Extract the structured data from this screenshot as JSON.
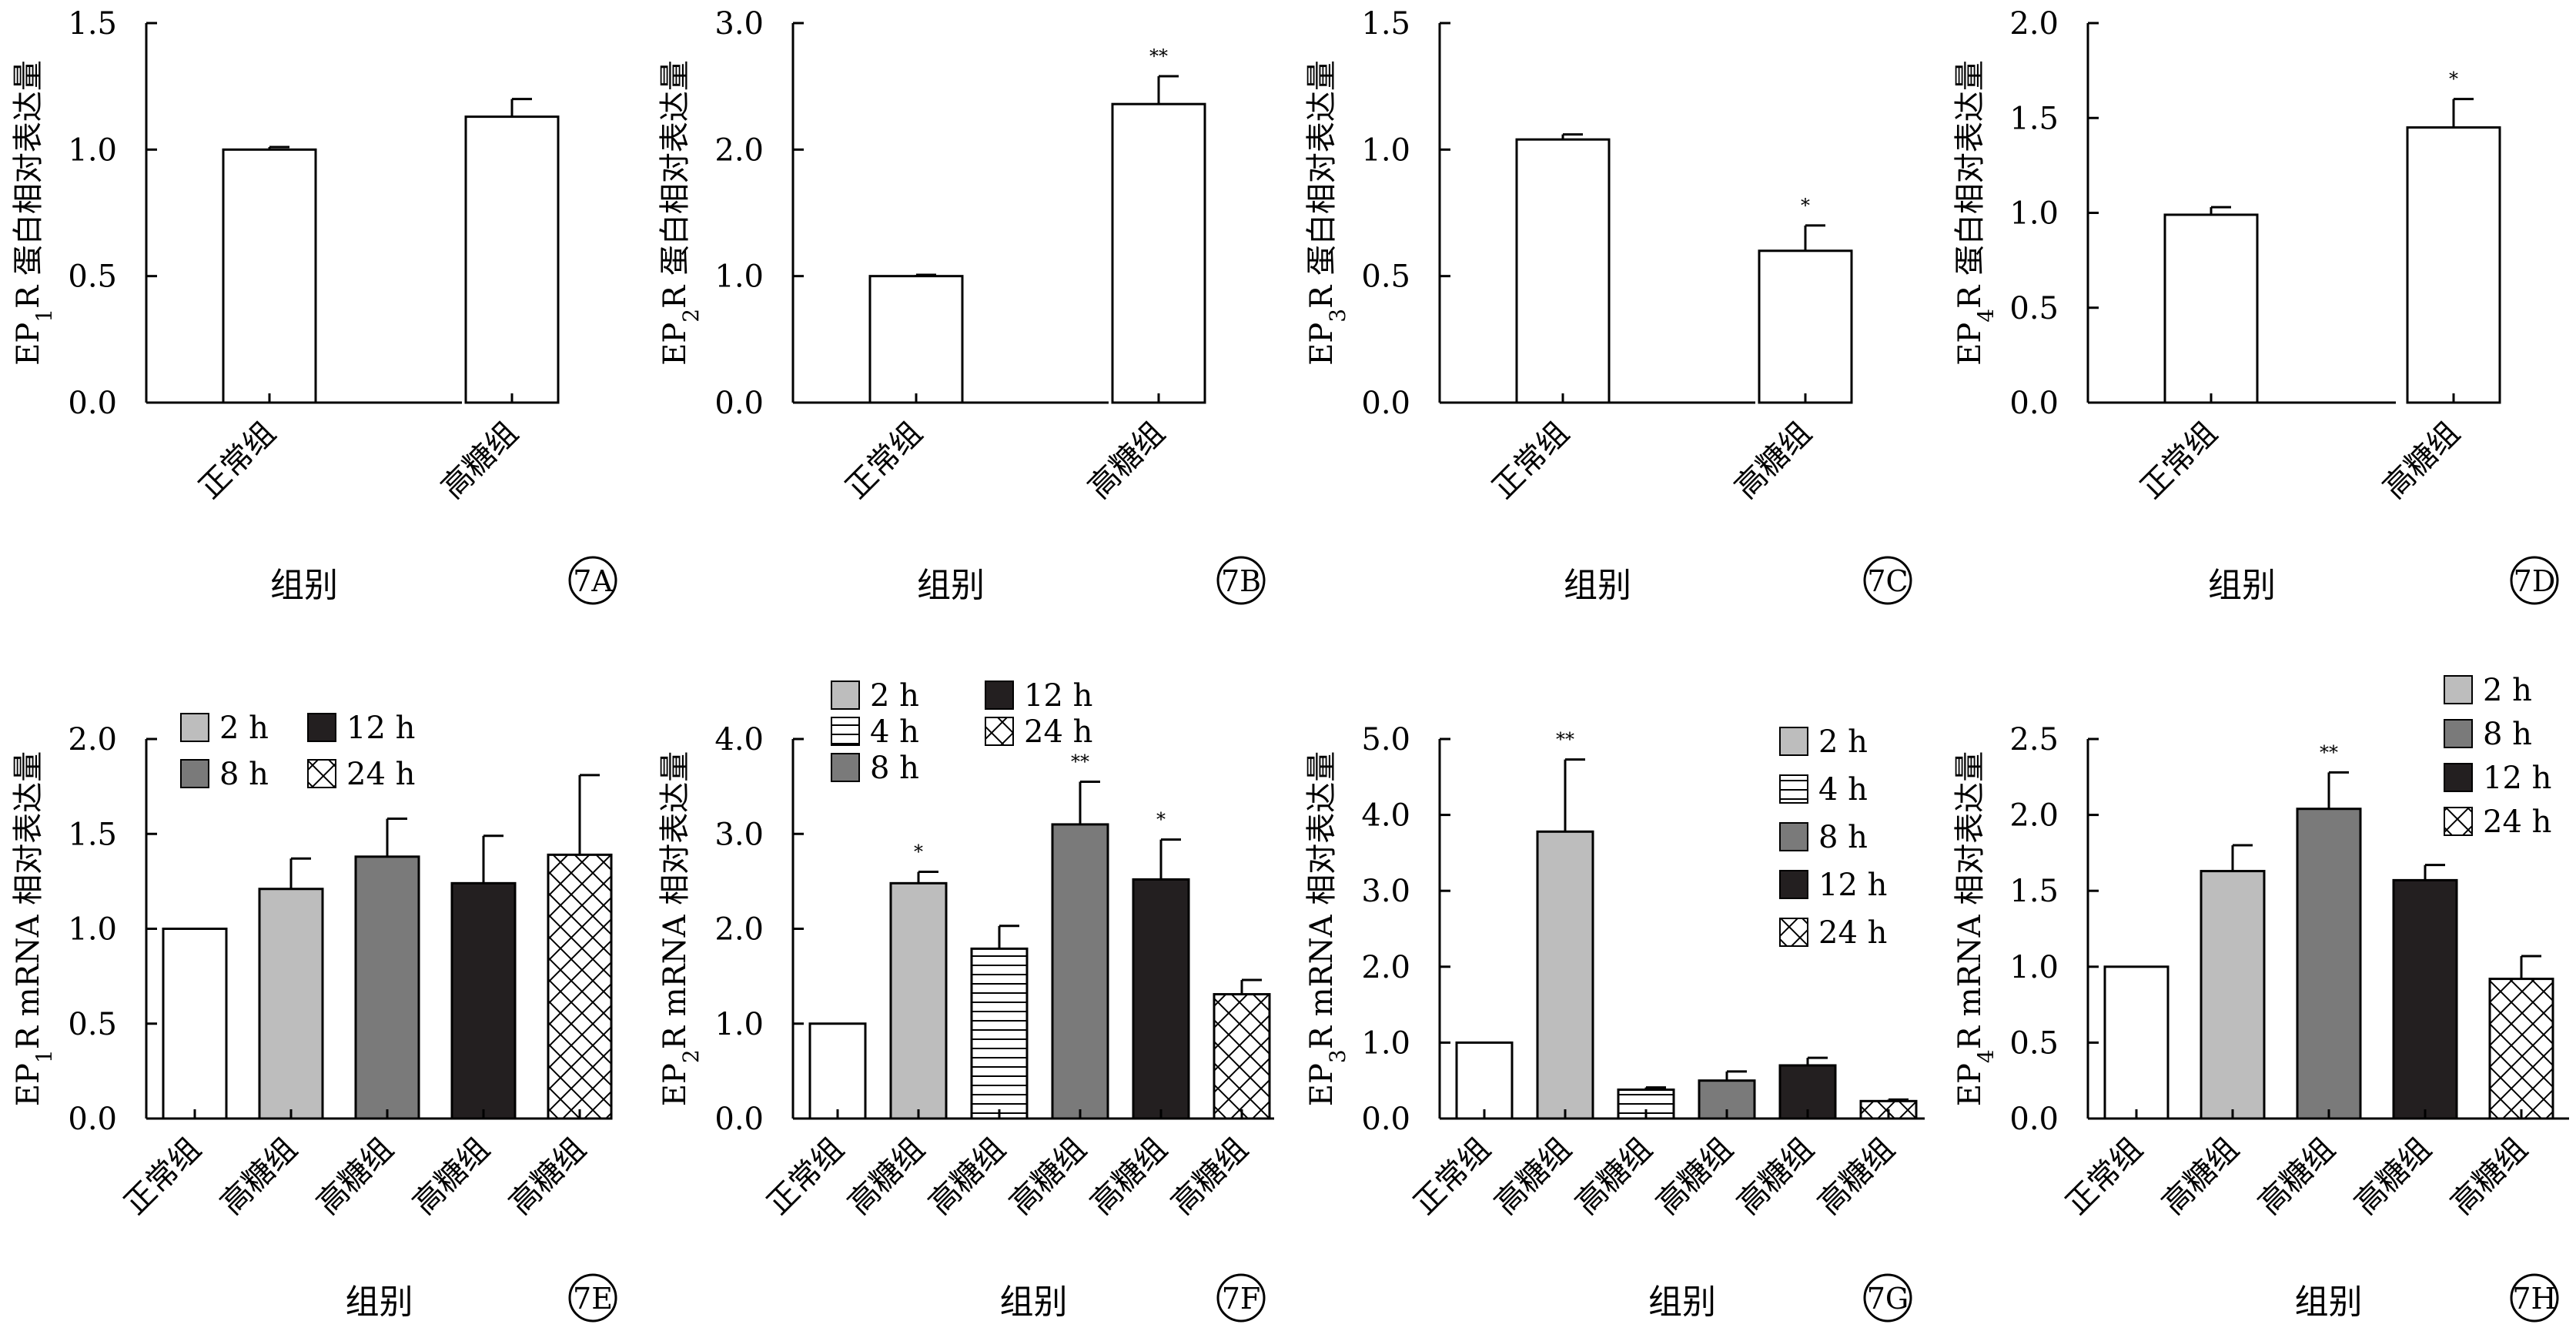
{
  "chart_data": [
    {
      "id": "A",
      "type": "bar",
      "panel_label": "7A",
      "ylabel_pre": "EP",
      "ylabel_sub": "1",
      "ylabel_post": "R 蛋白相对表达量",
      "xlabel": "组别",
      "ylim": [
        0,
        1.5
      ],
      "yticks": [
        "0.0",
        "0.5",
        "1.0",
        "1.5"
      ],
      "categories": [
        "正常组",
        "高糖组"
      ],
      "values": [
        1.0,
        1.13
      ],
      "errors": [
        0.01,
        0.07
      ],
      "sig": [
        "",
        ""
      ],
      "patterns": [
        "white",
        "white"
      ]
    },
    {
      "id": "B",
      "type": "bar",
      "panel_label": "7B",
      "ylabel_pre": "EP",
      "ylabel_sub": "2",
      "ylabel_post": "R 蛋白相对表达量",
      "xlabel": "组别",
      "ylim": [
        0,
        3.0
      ],
      "yticks": [
        "0.0",
        "1.0",
        "2.0",
        "3.0"
      ],
      "categories": [
        "正常组",
        "高糖组"
      ],
      "values": [
        1.0,
        2.36
      ],
      "errors": [
        0.01,
        0.22
      ],
      "sig": [
        "",
        "**"
      ],
      "patterns": [
        "white",
        "white"
      ]
    },
    {
      "id": "C",
      "type": "bar",
      "panel_label": "7C",
      "ylabel_pre": "EP",
      "ylabel_sub": "3",
      "ylabel_post": "R 蛋白相对表达量",
      "xlabel": "组别",
      "ylim": [
        0,
        1.5
      ],
      "yticks": [
        "0.0",
        "0.5",
        "1.0",
        "1.5"
      ],
      "categories": [
        "正常组",
        "高糖组"
      ],
      "values": [
        1.04,
        0.6
      ],
      "errors": [
        0.02,
        0.1
      ],
      "sig": [
        "",
        "*"
      ],
      "patterns": [
        "white",
        "white"
      ]
    },
    {
      "id": "D",
      "type": "bar",
      "panel_label": "7D",
      "ylabel_pre": "EP",
      "ylabel_sub": "4",
      "ylabel_post": "R 蛋白相对表达量",
      "xlabel": "组别",
      "ylim": [
        0,
        2.0
      ],
      "yticks": [
        "0.0",
        "0.5",
        "1.0",
        "1.5",
        "2.0"
      ],
      "categories": [
        "正常组",
        "高糖组"
      ],
      "values": [
        0.99,
        1.45
      ],
      "errors": [
        0.04,
        0.15
      ],
      "sig": [
        "",
        "*"
      ],
      "patterns": [
        "white",
        "white"
      ]
    },
    {
      "id": "E",
      "type": "bar",
      "panel_label": "7E",
      "ylabel_pre": "EP",
      "ylabel_sub": "1",
      "ylabel_post": "R mRNA 相对表达量",
      "xlabel": "组别",
      "ylim": [
        0,
        2.0
      ],
      "yticks": [
        "0.0",
        "0.5",
        "1.0",
        "1.5",
        "2.0"
      ],
      "categories": [
        "正常组",
        "高糖组",
        "高糖组",
        "高糖组",
        "高糖组"
      ],
      "values": [
        1.0,
        1.21,
        1.38,
        1.24,
        1.39
      ],
      "errors": [
        0,
        0.16,
        0.2,
        0.25,
        0.42
      ],
      "sig": [
        "",
        "",
        "",
        "",
        ""
      ],
      "patterns": [
        "white",
        "light",
        "mid",
        "dark",
        "cross"
      ],
      "legend": [
        {
          "label": "2 h",
          "pattern": "light"
        },
        {
          "label": "12 h",
          "pattern": "dark"
        },
        {
          "label": "8 h",
          "pattern": "mid"
        },
        {
          "label": "24 h",
          "pattern": "cross"
        }
      ]
    },
    {
      "id": "F",
      "type": "bar",
      "panel_label": "7F",
      "ylabel_pre": "EP",
      "ylabel_sub": "2",
      "ylabel_post": "R mRNA 相对表达量",
      "xlabel": "组别",
      "ylim": [
        0,
        4.0
      ],
      "yticks": [
        "0.0",
        "1.0",
        "2.0",
        "3.0",
        "4.0"
      ],
      "categories": [
        "正常组",
        "高糖组",
        "高糖组",
        "高糖组",
        "高糖组",
        "高糖组"
      ],
      "values": [
        1.0,
        2.48,
        1.79,
        3.1,
        2.52,
        1.31
      ],
      "errors": [
        0,
        0.12,
        0.24,
        0.45,
        0.42,
        0.15
      ],
      "sig": [
        "",
        "*",
        "",
        "**",
        "*",
        ""
      ],
      "patterns": [
        "white",
        "light",
        "hline",
        "mid",
        "dark",
        "cross"
      ],
      "legend": [
        {
          "label": "2 h",
          "pattern": "light"
        },
        {
          "label": "12 h",
          "pattern": "dark"
        },
        {
          "label": "4 h",
          "pattern": "hline"
        },
        {
          "label": "24 h",
          "pattern": "cross"
        },
        {
          "label": "8 h",
          "pattern": "mid"
        }
      ]
    },
    {
      "id": "G",
      "type": "bar",
      "panel_label": "7G",
      "ylabel_pre": "EP",
      "ylabel_sub": "3",
      "ylabel_post": "R mRNA 相对表达量",
      "xlabel": "组别",
      "ylim": [
        0,
        5.0
      ],
      "yticks": [
        "0.0",
        "1.0",
        "2.0",
        "3.0",
        "4.0",
        "5.0"
      ],
      "categories": [
        "正常组",
        "高糖组",
        "高糖组",
        "高糖组",
        "高糖组",
        "高糖组"
      ],
      "values": [
        1.0,
        3.78,
        0.38,
        0.5,
        0.7,
        0.23
      ],
      "errors": [
        0,
        0.95,
        0.03,
        0.12,
        0.1,
        0.02
      ],
      "sig": [
        "",
        "**",
        "",
        "",
        "",
        ""
      ],
      "patterns": [
        "white",
        "light",
        "hline",
        "mid",
        "dark",
        "cross"
      ],
      "legend": [
        {
          "label": "2 h",
          "pattern": "light"
        },
        {
          "label": "4 h",
          "pattern": "hline"
        },
        {
          "label": "8 h",
          "pattern": "mid"
        },
        {
          "label": "12 h",
          "pattern": "dark"
        },
        {
          "label": "24 h",
          "pattern": "cross"
        }
      ]
    },
    {
      "id": "H",
      "type": "bar",
      "panel_label": "7H",
      "ylabel_pre": "EP",
      "ylabel_sub": "4",
      "ylabel_post": "R mRNA 相对表达量",
      "xlabel": "组别",
      "ylim": [
        0,
        2.5
      ],
      "yticks": [
        "0.0",
        "0.5",
        "1.0",
        "1.5",
        "2.0",
        "2.5"
      ],
      "categories": [
        "正常组",
        "高糖组",
        "高糖组",
        "高糖组",
        "高糖组"
      ],
      "values": [
        1.0,
        1.63,
        2.04,
        1.57,
        0.92
      ],
      "errors": [
        0,
        0.17,
        0.24,
        0.1,
        0.15
      ],
      "sig": [
        "",
        "",
        "**",
        "",
        ""
      ],
      "patterns": [
        "white",
        "light",
        "mid",
        "dark",
        "cross"
      ],
      "legend": [
        {
          "label": "2 h",
          "pattern": "light"
        },
        {
          "label": "8 h",
          "pattern": "mid"
        },
        {
          "label": "12 h",
          "pattern": "dark"
        },
        {
          "label": "24 h",
          "pattern": "cross"
        }
      ]
    }
  ],
  "colors": {
    "axis": "#000000",
    "white": "#ffffff",
    "light": "#bdbdbd",
    "mid": "#7a7a7a",
    "dark": "#231f20"
  }
}
